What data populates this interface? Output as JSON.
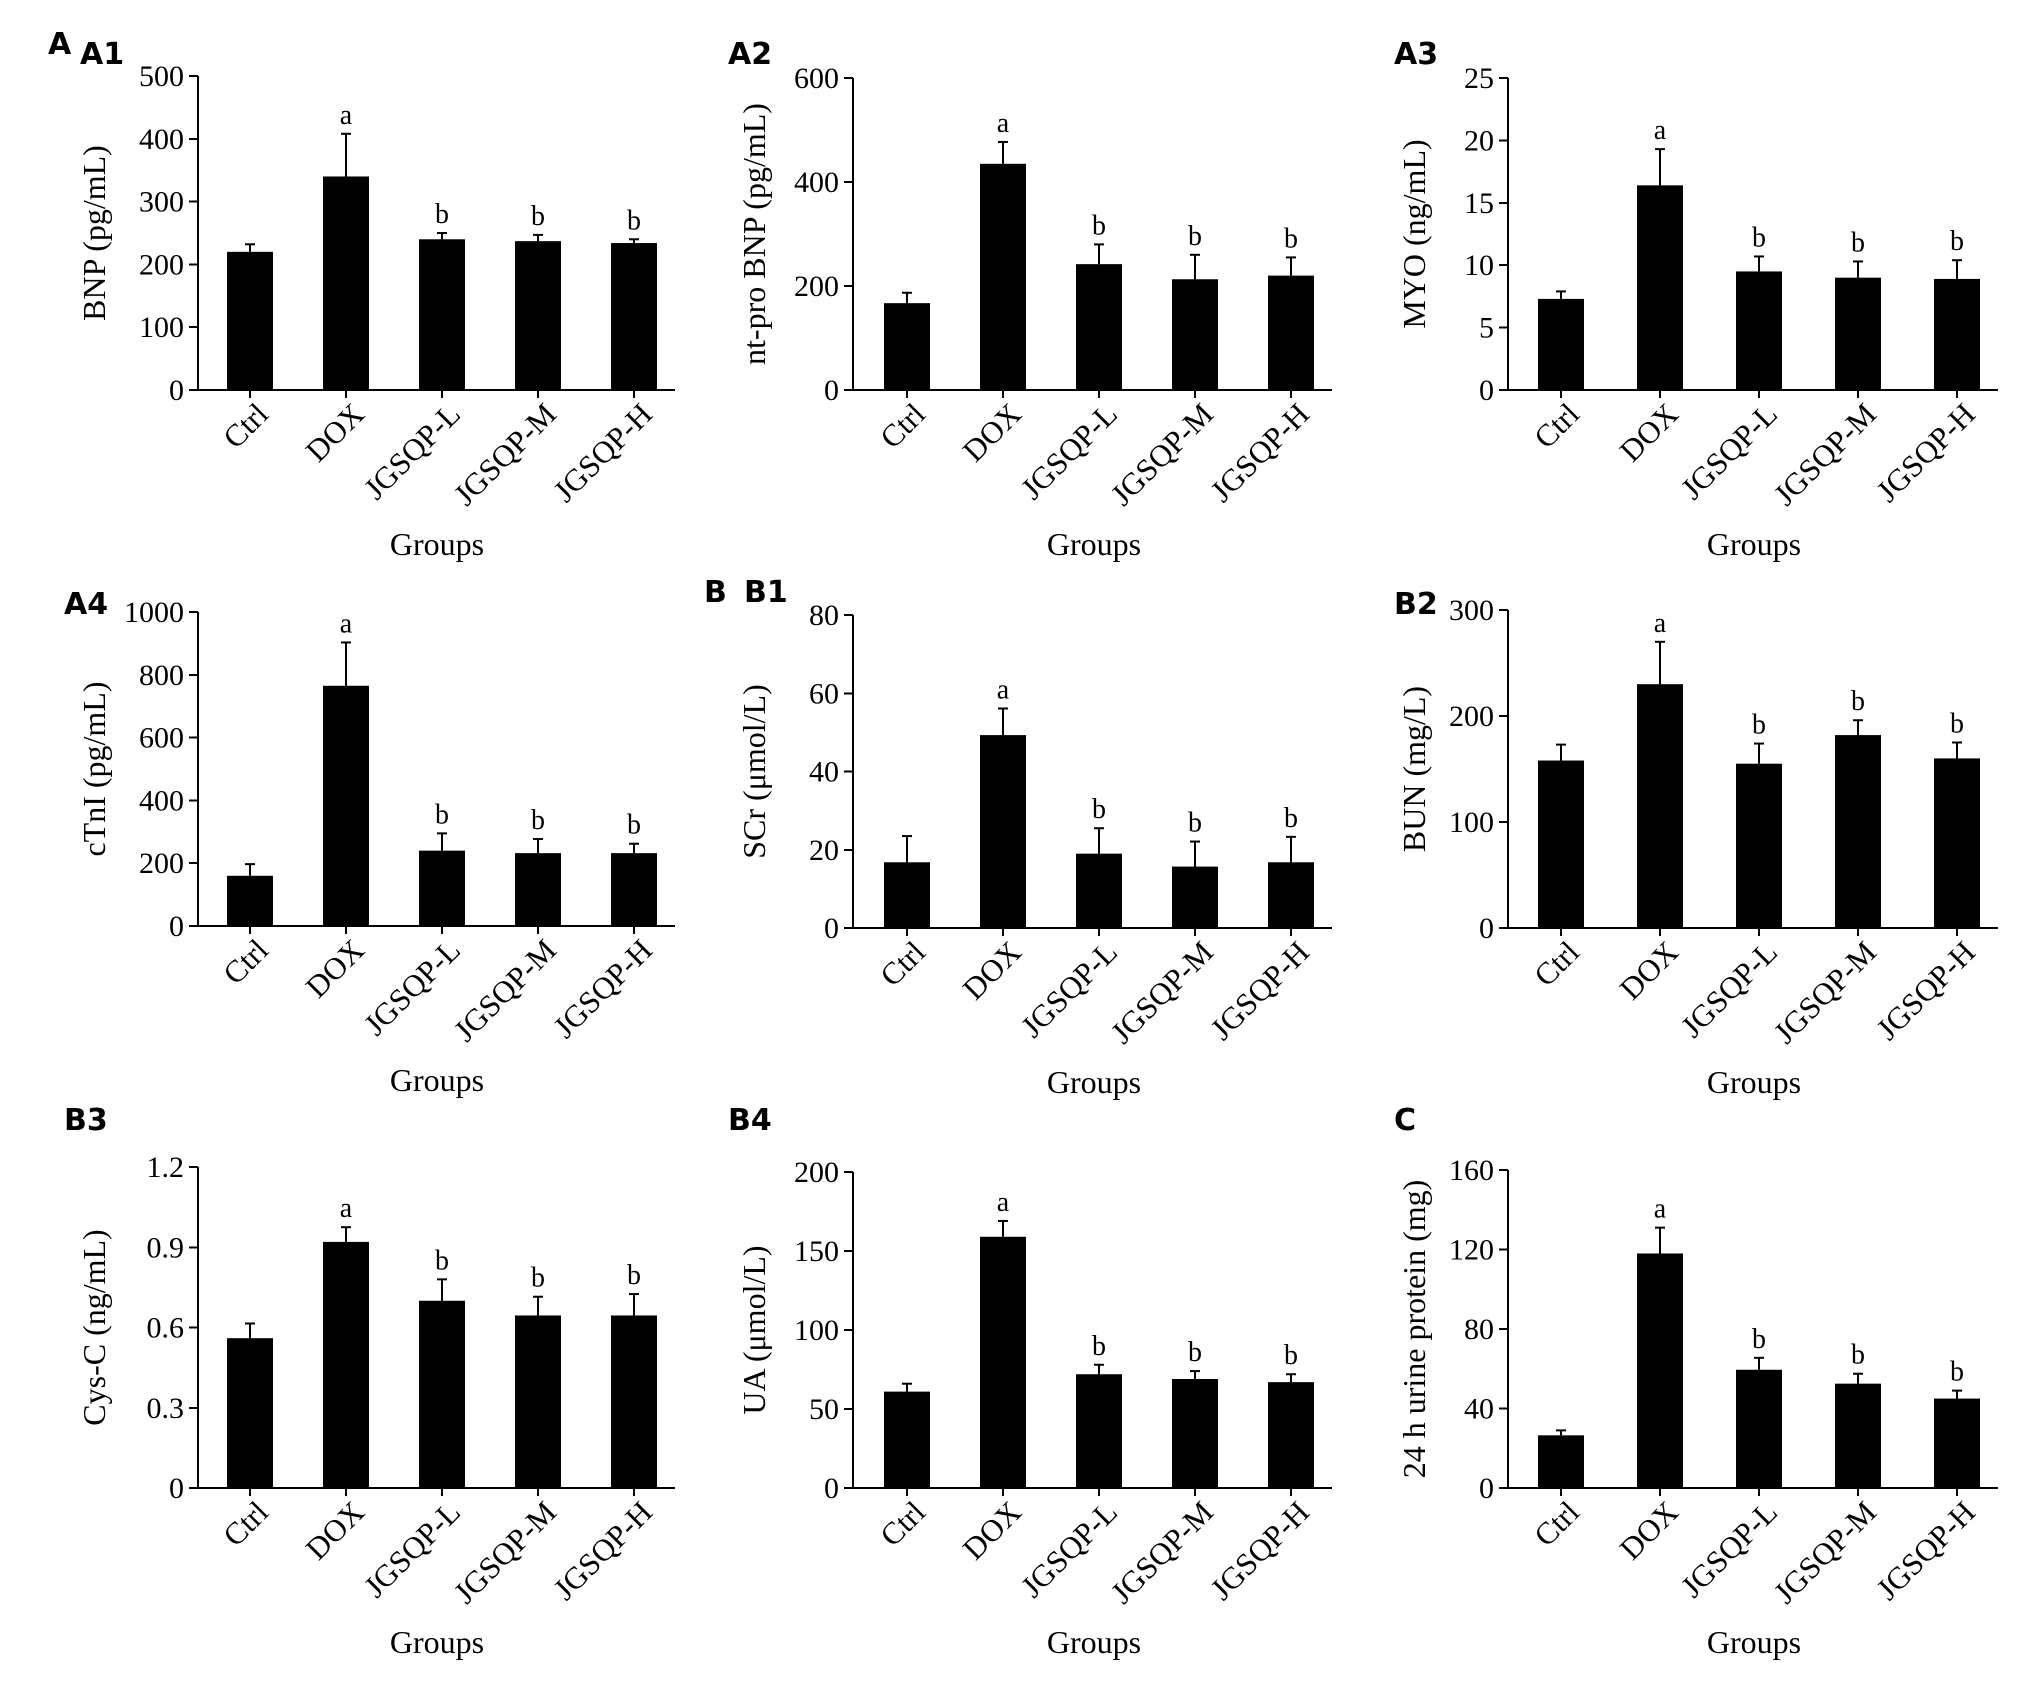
{
  "section_labels": [
    "A",
    "B"
  ],
  "chart_data": [
    {
      "id": "A1",
      "type": "bar",
      "panel_label": "A1",
      "categories": [
        "Ctrl",
        "DOX",
        "JGSQP-L",
        "JGSQP-M",
        "JGSQP-H"
      ],
      "values": [
        220,
        340,
        240,
        237,
        234
      ],
      "errors": [
        12,
        68,
        10,
        10,
        6
      ],
      "significance": [
        "",
        "a",
        "b",
        "b",
        "b"
      ],
      "ylabel": "BNP (pg/mL)",
      "xlabel": "Groups",
      "ylim": [
        0,
        500
      ],
      "yticks": [
        "0",
        "100",
        "200",
        "300",
        "400",
        "500"
      ]
    },
    {
      "id": "A2",
      "type": "bar",
      "panel_label": "A2",
      "categories": [
        "Ctrl",
        "DOX",
        "JGSQP-L",
        "JGSQP-M",
        "JGSQP-H"
      ],
      "values": [
        167,
        435,
        242,
        213,
        220
      ],
      "errors": [
        20,
        42,
        38,
        47,
        35
      ],
      "significance": [
        "",
        "a",
        "b",
        "b",
        "b"
      ],
      "ylabel": "nt-pro BNP (pg/mL)",
      "xlabel": "Groups",
      "ylim": [
        0,
        600
      ],
      "yticks": [
        "0",
        "200",
        "400",
        "600"
      ]
    },
    {
      "id": "A3",
      "type": "bar",
      "panel_label": "A3",
      "categories": [
        "Ctrl",
        "DOX",
        "JGSQP-L",
        "JGSQP-M",
        "JGSQP-H"
      ],
      "values": [
        7.3,
        16.4,
        9.5,
        9.0,
        8.9
      ],
      "errors": [
        0.6,
        2.9,
        1.2,
        1.3,
        1.5
      ],
      "significance": [
        "",
        "a",
        "b",
        "b",
        "b"
      ],
      "ylabel": "MYO (ng/mL)",
      "xlabel": "Groups",
      "ylim": [
        0,
        25
      ],
      "yticks": [
        "0",
        "5",
        "10",
        "15",
        "20",
        "25"
      ]
    },
    {
      "id": "A4",
      "type": "bar",
      "panel_label": "A4",
      "categories": [
        "Ctrl",
        "DOX",
        "JGSQP-L",
        "JGSQP-M",
        "JGSQP-H"
      ],
      "values": [
        160,
        765,
        240,
        232,
        232
      ],
      "errors": [
        37,
        138,
        55,
        45,
        30
      ],
      "significance": [
        "",
        "a",
        "b",
        "b",
        "b"
      ],
      "ylabel": "cTnI (pg/mL)",
      "xlabel": "Groups",
      "ylim": [
        0,
        1000
      ],
      "yticks": [
        "0",
        "200",
        "400",
        "600",
        "800",
        "1000"
      ]
    },
    {
      "id": "B1",
      "type": "bar",
      "panel_label": "B1",
      "categories": [
        "Ctrl",
        "DOX",
        "JGSQP-L",
        "JGSQP-M",
        "JGSQP-H"
      ],
      "values": [
        16.8,
        49.3,
        19.0,
        15.7,
        16.8
      ],
      "errors": [
        6.7,
        6.8,
        6.5,
        6.4,
        6.5
      ],
      "significance": [
        "",
        "a",
        "b",
        "b",
        "b"
      ],
      "ylabel": "SCr (μmol/L)",
      "xlabel": "Groups",
      "ylim": [
        0,
        80
      ],
      "yticks": [
        "0",
        "20",
        "40",
        "60",
        "80"
      ]
    },
    {
      "id": "B2",
      "type": "bar",
      "panel_label": "B2",
      "categories": [
        "Ctrl",
        "DOX",
        "JGSQP-L",
        "JGSQP-M",
        "JGSQP-H"
      ],
      "values": [
        158,
        230,
        155,
        182,
        160
      ],
      "errors": [
        15,
        40,
        19,
        14,
        15
      ],
      "significance": [
        "",
        "a",
        "b",
        "b",
        "b"
      ],
      "ylabel": "BUN (mg/L)",
      "xlabel": "Groups",
      "ylim": [
        0,
        300
      ],
      "yticks": [
        "0",
        "100",
        "200",
        "300"
      ]
    },
    {
      "id": "B3",
      "type": "bar",
      "panel_label": "B3",
      "categories": [
        "Ctrl",
        "DOX",
        "JGSQP-L",
        "JGSQP-M",
        "JGSQP-H"
      ],
      "values": [
        0.56,
        0.92,
        0.7,
        0.645,
        0.645
      ],
      "errors": [
        0.055,
        0.055,
        0.08,
        0.07,
        0.08
      ],
      "significance": [
        "",
        "a",
        "b",
        "b",
        "b"
      ],
      "ylabel": "Cys-C (ng/mL)",
      "xlabel": "Groups",
      "ylim": [
        0,
        1.2
      ],
      "yticks": [
        "0",
        "0.3",
        "0.6",
        "0.9",
        "1.2"
      ]
    },
    {
      "id": "B4",
      "type": "bar",
      "panel_label": "B4",
      "categories": [
        "Ctrl",
        "DOX",
        "JGSQP-L",
        "JGSQP-M",
        "JGSQP-H"
      ],
      "values": [
        61,
        159,
        72,
        69,
        67
      ],
      "errors": [
        5,
        10,
        6,
        5,
        5
      ],
      "significance": [
        "",
        "a",
        "b",
        "b",
        "b"
      ],
      "ylabel": "UA (μmol/L)",
      "xlabel": "Groups",
      "ylim": [
        0,
        200
      ],
      "yticks": [
        "0",
        "50",
        "100",
        "150",
        "200"
      ]
    },
    {
      "id": "C",
      "type": "bar",
      "panel_label": "C",
      "categories": [
        "Ctrl",
        "DOX",
        "JGSQP-L",
        "JGSQP-M",
        "JGSQP-H"
      ],
      "values": [
        26.5,
        118,
        59.5,
        52.5,
        45
      ],
      "errors": [
        2.5,
        13,
        6,
        5,
        4
      ],
      "significance": [
        "",
        "a",
        "b",
        "b",
        "b"
      ],
      "ylabel": "24 h urine protein (mg)",
      "xlabel": "Groups",
      "ylim": [
        0,
        160
      ],
      "yticks": [
        "0",
        "40",
        "80",
        "120",
        "160"
      ]
    }
  ]
}
